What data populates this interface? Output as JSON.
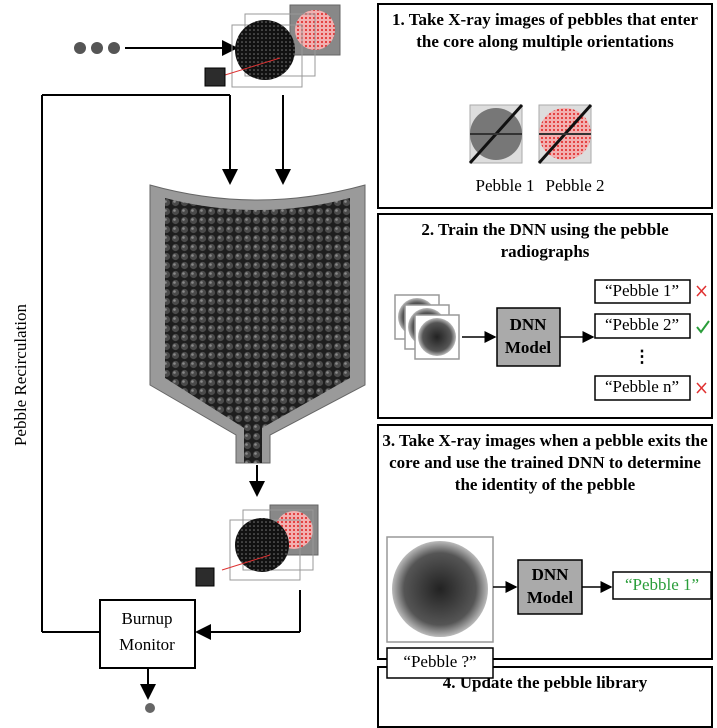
{
  "left": {
    "recirculation_label": "Pebble Recirculation",
    "burnup_monitor": [
      "Burnup",
      "Monitor"
    ]
  },
  "steps": [
    {
      "title": "1. Take X-ray images of pebbles that enter the core along multiple orientations",
      "images": [
        "Pebble 1",
        "Pebble 2"
      ]
    },
    {
      "title": "2. Train the DNN using the pebble radiographs",
      "model": [
        "DNN",
        "Model"
      ],
      "outputs": [
        "“Pebble 1”",
        "“Pebble 2”",
        "⋮",
        "“Pebble n”"
      ]
    },
    {
      "title": "3. Take X-ray images when a pebble exits the core and use the trained DNN to determine the identity of the pebble",
      "model": [
        "DNN",
        "Model"
      ],
      "input_label": "“Pebble ?”",
      "output": "“Pebble 1”"
    },
    {
      "title": "4. Update the pebble library"
    }
  ]
}
